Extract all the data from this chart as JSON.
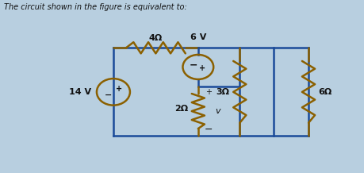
{
  "title": "The circuit shown in the figure is equivalent to:",
  "bg_color": "#b8cfe0",
  "panel_color": "#ccdde8",
  "wire_color": "#1a4a99",
  "wire_lw": 1.8,
  "resistor_color": "#8B6000",
  "text_color": "#111111",
  "label_4ohm": "4Ω",
  "label_6V": "6 V",
  "label_14V": "14 V",
  "label_2ohm": "2Ω",
  "label_3ohm": "3Ω",
  "label_6ohm": "6Ω",
  "label_v": "v",
  "figsize": [
    4.59,
    2.18
  ],
  "dpi": 100
}
